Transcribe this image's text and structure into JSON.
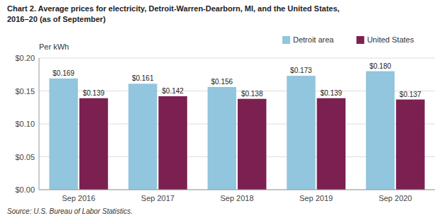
{
  "chart_data": {
    "type": "bar",
    "title": "Chart 2. Average prices for electricity, Detroit-Warren-Dearborn, MI, and the United States,",
    "subtitle": "2016–20  (as of September)",
    "y_label": "Per kWh",
    "source": "Source: U.S. Bureau of Labor Statistics.",
    "categories": [
      "Sep 2016",
      "Sep 2017",
      "Sep 2018",
      "Sep 2019",
      "Sep 2020"
    ],
    "series": [
      {
        "name": "Detroit area",
        "color": "#92C5DE",
        "values": [
          0.169,
          0.161,
          0.156,
          0.173,
          0.18
        ],
        "value_labels": [
          "$0.169",
          "$0.161",
          "$0.156",
          "$0.173",
          "$0.180"
        ]
      },
      {
        "name": "United States",
        "color": "#7B2051",
        "values": [
          0.139,
          0.142,
          0.138,
          0.139,
          0.137
        ],
        "value_labels": [
          "$0.139",
          "$0.142",
          "$0.138",
          "$0.139",
          "$0.137"
        ]
      }
    ],
    "ylim": [
      0.0,
      0.2
    ],
    "yticks": [
      {
        "value": 0.0,
        "label": "$0.00"
      },
      {
        "value": 0.05,
        "label": "$0.05"
      },
      {
        "value": 0.1,
        "label": "$0.10"
      },
      {
        "value": 0.15,
        "label": "$0.15"
      },
      {
        "value": 0.2,
        "label": "$0.20"
      }
    ],
    "grid": true,
    "legend": "upper right",
    "data_labels": true
  }
}
